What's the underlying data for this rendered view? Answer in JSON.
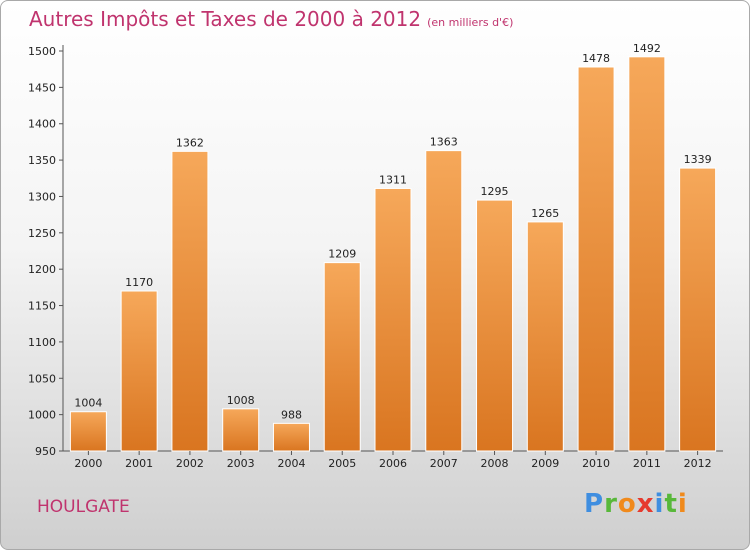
{
  "title": "Autres Impôts et Taxes de 2000 à 2012",
  "title_unit": "(en milliers d'€)",
  "location": "HOULGATE",
  "logo": {
    "letters": [
      "P",
      "r",
      "o",
      "x",
      "i",
      "t",
      "i"
    ],
    "colors": [
      "#3f8ee0",
      "#58b83a",
      "#f08a1c",
      "#e63a2e",
      "#3f8ee0",
      "#58b83a",
      "#f08a1c"
    ]
  },
  "colors": {
    "bar_top": "#f6a85a",
    "bar_bottom": "#d97520",
    "accent": "#c0346e"
  },
  "chart_data": {
    "type": "bar",
    "title": "Autres Impôts et Taxes de 2000 à 2012",
    "xlabel": "",
    "ylabel": "",
    "categories": [
      "2000",
      "2001",
      "2002",
      "2003",
      "2004",
      "2005",
      "2006",
      "2007",
      "2008",
      "2009",
      "2010",
      "2011",
      "2012"
    ],
    "values": [
      1004,
      1170,
      1362,
      1008,
      988,
      1209,
      1311,
      1363,
      1295,
      1265,
      1478,
      1492,
      1339
    ],
    "ylim": [
      950,
      1500
    ],
    "yticks": [
      950,
      1000,
      1050,
      1100,
      1150,
      1200,
      1250,
      1300,
      1350,
      1400,
      1450,
      1500
    ],
    "grid": false,
    "legend": "none"
  }
}
